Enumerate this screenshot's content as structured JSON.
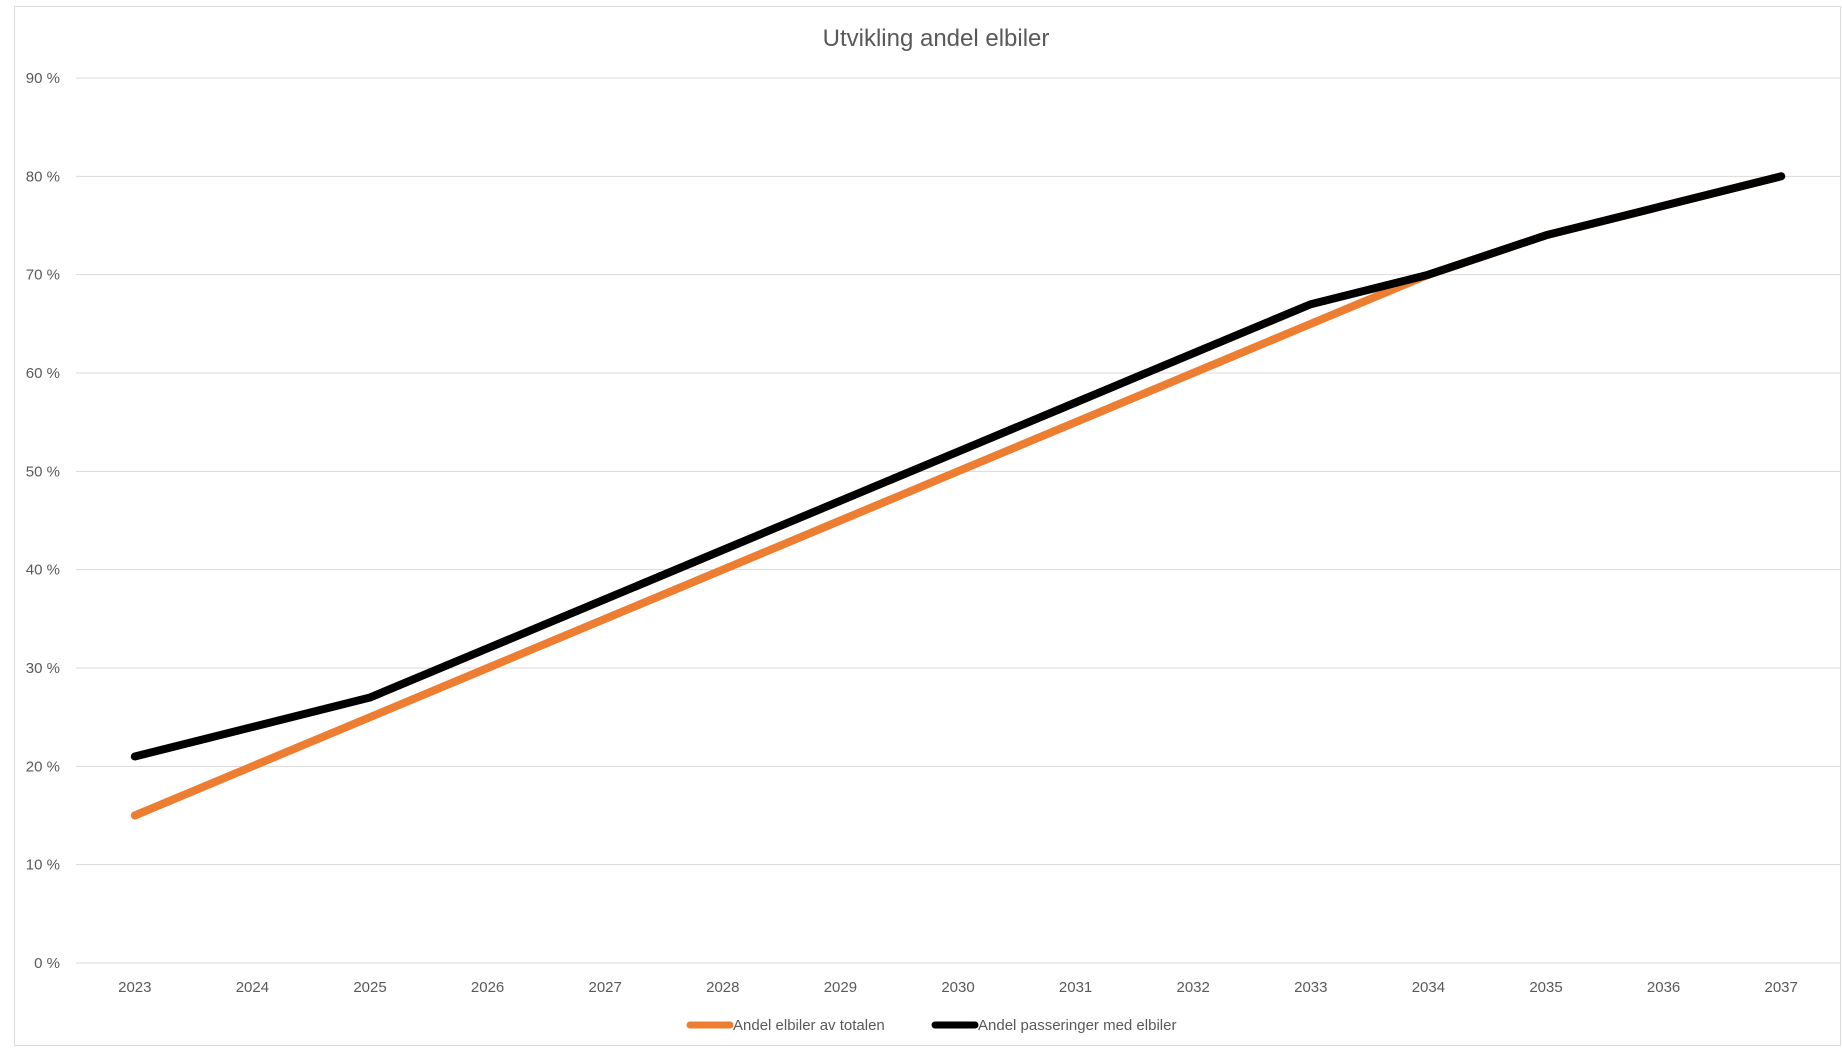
{
  "chart_data": {
    "type": "line",
    "title": "Utvikling andel elbiler",
    "xlabel": "",
    "ylabel": "",
    "x": [
      "2023",
      "2024",
      "2025",
      "2026",
      "2027",
      "2028",
      "2029",
      "2030",
      "2031",
      "2032",
      "2033",
      "2034",
      "2035",
      "2036",
      "2037"
    ],
    "ylim": [
      0,
      90
    ],
    "yticks": [
      0,
      10,
      20,
      30,
      40,
      50,
      60,
      70,
      80,
      90
    ],
    "ytick_labels": [
      "0 %",
      "10 %",
      "20 %",
      "30 %",
      "40 %",
      "50 %",
      "60 %",
      "70 %",
      "80 %",
      "90 %"
    ],
    "grid": true,
    "legend_position": "bottom",
    "series": [
      {
        "name": "Andel elbiler av totalen",
        "color": "#ed7d31",
        "values": [
          15,
          20,
          25,
          30,
          35,
          40,
          45,
          50,
          55,
          60,
          65,
          70,
          74,
          77,
          80
        ]
      },
      {
        "name": "Andel passeringer med elbiler",
        "color": "#000000",
        "values": [
          21,
          24,
          27,
          32,
          37,
          42,
          47,
          52,
          57,
          62,
          67,
          70,
          74,
          77,
          80
        ]
      }
    ]
  }
}
